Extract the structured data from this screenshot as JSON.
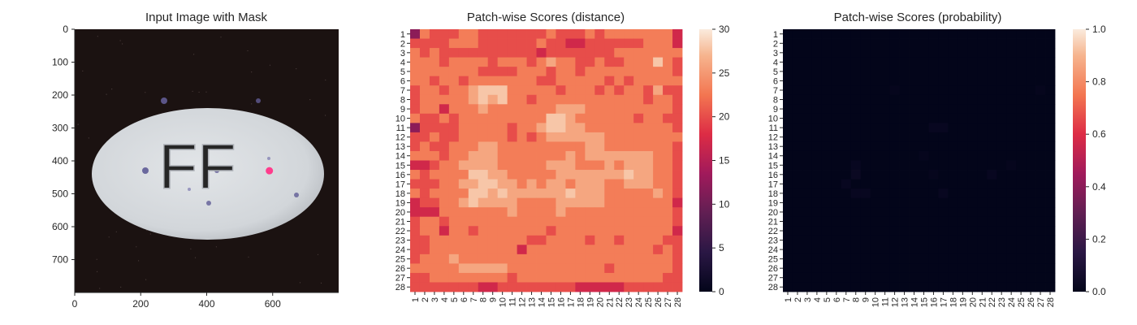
{
  "chart_data": [
    {
      "type": "image",
      "title": "Input Image with Mask",
      "xlim": [
        0,
        800
      ],
      "ylim": [
        800,
        0
      ],
      "xticks": [
        0,
        200,
        400,
        600
      ],
      "yticks": [
        0,
        100,
        200,
        300,
        400,
        500,
        600,
        700
      ],
      "imprint_text": "FF",
      "mask_points": [
        {
          "x": 590,
          "y": 430
        }
      ],
      "colors": {
        "background": "#1b1211",
        "pill": "#d6dadd",
        "speckle": "#4e4a8c",
        "mask": "#ff3c8c"
      }
    },
    {
      "type": "heatmap",
      "title": "Patch-wise Scores (distance)",
      "rows": 28,
      "cols": 28,
      "colorbar": {
        "min": 0,
        "max": 30,
        "ticks": [
          0,
          5,
          10,
          15,
          20,
          25,
          30
        ]
      },
      "colormap": "rocket",
      "cells": [
        "GDEEEDDEEEEEEEDEEEDEDDDDDDDF",
        "EEEEDDDEEEEEEDEEFFEEEEEEDDDF",
        "DEDEEEEEEEEEEFEEEEEEEDDDDDDD",
        "DDDEDDDDEDDDEDCDDEEDEEDDDBDE",
        "DDDDDDDEEEEDDDEDDEDDDDDDDDDE",
        "DDEDDEDDDDDDDEEDDDDDEDEDDDDD",
        "EDDEDDCBBBDDDDDEDDDEDEDDECEE",
        "EDDDDDCBCBDDEDDDDDDDDDDDEDDE",
        "EDDFDDDCDDDDDDDCCCDDDDDDDDDE",
        "DEEDEDDDDDDDDDBBCDDDDDDEDDEE",
        "GEEEEDDDDDEDDCBBCCDDDDDDDDDE",
        "EEDEEDDDDDEDEDCCCCCCDDDDDDDD",
        "EDEEDDDCCDDDDDDDDDCCDDDDDDDE",
        "DDDEDDCCCDDDDDDDCDCCCCCCCDDE",
        "FFEDDCCCCDDDDDCCCDDDCDCCCDDE",
        "DEDDDDBBCCDDDDDCCCCCCCBCCDDE",
        "EEEDDCCBBCCDCDCCDCCCDDCCCDDE",
        "DEDDDDBBCBCCCCCCBCCCDDDDDCDE",
        "FEEDDCBCCCCDDDDCCCCCDDDDDDDF",
        "FFFDDDDDDDCDDDDCDDDDDDDDDDDE",
        "EDDEDDDDDDDDDDDDDDDDDDDDDDDE",
        "EDDFDDEDDDDDDDEDDDDDDDDDDDDF",
        "EEDDDDDDDDDDEEDDDDEDDEDDDDEE",
        "EEDDDDDDDDDFDDDDDDDDDDDDDEDE",
        "EDDDCDDDDDDDDDDDDDDDDDDDDDDE",
        "DDDDDCCCCCDDDDDDDDDDEDDDDDDE",
        "EEDDDDDDDDEDDDDDDDDDDDDDDDEE",
        "EEEEEEEFFEEEEEEEEFFFFFEEEEEE"
      ],
      "cell_legend": {
        "B": 28,
        "C": 26,
        "D": 23,
        "E": 20,
        "F": 17,
        "G": 12
      },
      "xticks": [
        "1",
        "2",
        "3",
        "4",
        "5",
        "6",
        "7",
        "8",
        "9",
        "10",
        "11",
        "12",
        "13",
        "14",
        "15",
        "16",
        "17",
        "18",
        "19",
        "20",
        "21",
        "22",
        "23",
        "24",
        "25",
        "26",
        "27",
        "28"
      ],
      "yticks": [
        "1",
        "2",
        "3",
        "4",
        "5",
        "6",
        "7",
        "8",
        "9",
        "10",
        "11",
        "12",
        "13",
        "14",
        "15",
        "16",
        "17",
        "18",
        "19",
        "20",
        "21",
        "22",
        "23",
        "24",
        "25",
        "26",
        "27",
        "28"
      ]
    },
    {
      "type": "heatmap",
      "title": "Patch-wise Scores (probability)",
      "rows": 28,
      "cols": 28,
      "colorbar": {
        "min": 0.0,
        "max": 1.0,
        "ticks": [
          "0.0",
          "0.2",
          "0.4",
          "0.6",
          "0.8",
          "1.0"
        ]
      },
      "colormap": "rocket",
      "background_value": 0.0,
      "nonzero_cells": [
        {
          "row": 7,
          "col": 12,
          "value": 0.01
        },
        {
          "row": 7,
          "col": 27,
          "value": 0.01
        },
        {
          "row": 11,
          "col": 16,
          "value": 0.02
        },
        {
          "row": 11,
          "col": 17,
          "value": 0.02
        },
        {
          "row": 15,
          "col": 8,
          "value": 0.02
        },
        {
          "row": 16,
          "col": 8,
          "value": 0.03
        },
        {
          "row": 16,
          "col": 22,
          "value": 0.02
        },
        {
          "row": 16,
          "col": 16,
          "value": 0.01
        },
        {
          "row": 17,
          "col": 7,
          "value": 0.02
        },
        {
          "row": 18,
          "col": 8,
          "value": 0.02
        },
        {
          "row": 18,
          "col": 9,
          "value": 0.02
        },
        {
          "row": 18,
          "col": 17,
          "value": 0.02
        },
        {
          "row": 14,
          "col": 15,
          "value": 0.01
        },
        {
          "row": 15,
          "col": 24,
          "value": 0.01
        }
      ],
      "xticks": [
        "1",
        "2",
        "3",
        "4",
        "5",
        "6",
        "7",
        "8",
        "9",
        "10",
        "11",
        "12",
        "13",
        "14",
        "15",
        "16",
        "17",
        "18",
        "19",
        "20",
        "21",
        "22",
        "23",
        "24",
        "25",
        "26",
        "27",
        "28"
      ],
      "yticks": [
        "1",
        "2",
        "3",
        "4",
        "5",
        "6",
        "7",
        "8",
        "9",
        "10",
        "11",
        "12",
        "13",
        "14",
        "15",
        "16",
        "17",
        "18",
        "19",
        "20",
        "21",
        "22",
        "23",
        "24",
        "25",
        "26",
        "27",
        "28"
      ]
    }
  ]
}
